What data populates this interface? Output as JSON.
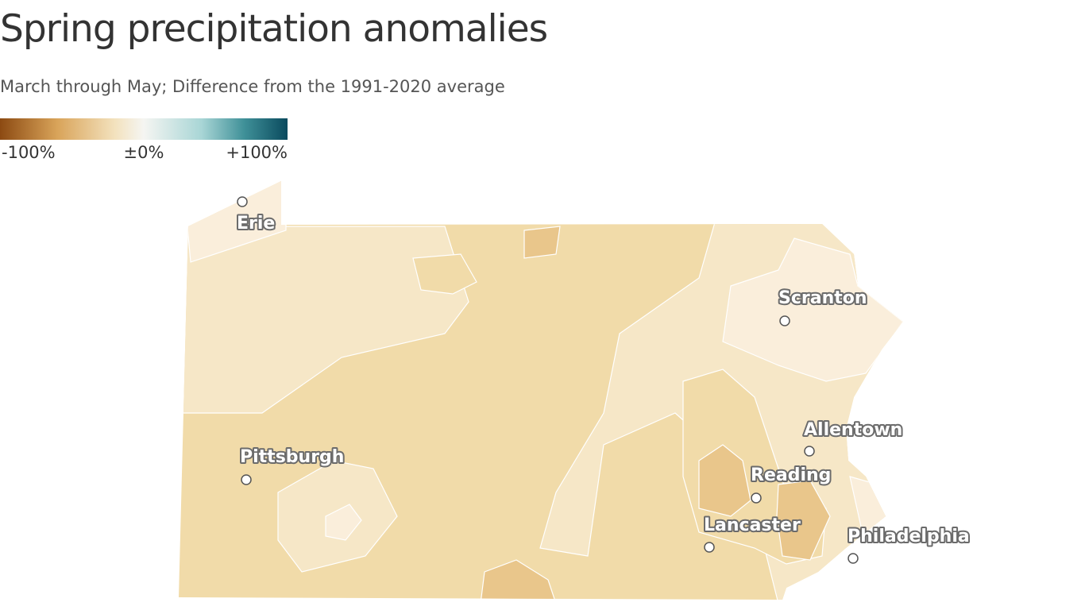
{
  "header": {
    "title": "Spring precipitation anomalies",
    "subtitle": "March through May; Difference from the 1991-2020 average"
  },
  "legend": {
    "labels": [
      "-100%",
      "±0%",
      "+100%"
    ]
  },
  "cities": [
    {
      "label": "Erie"
    },
    {
      "label": "Scranton"
    },
    {
      "label": "Allentown"
    },
    {
      "label": "Pittsburgh"
    },
    {
      "label": "Reading"
    },
    {
      "label": "Lancaster"
    },
    {
      "label": "Philadelphia"
    }
  ]
}
